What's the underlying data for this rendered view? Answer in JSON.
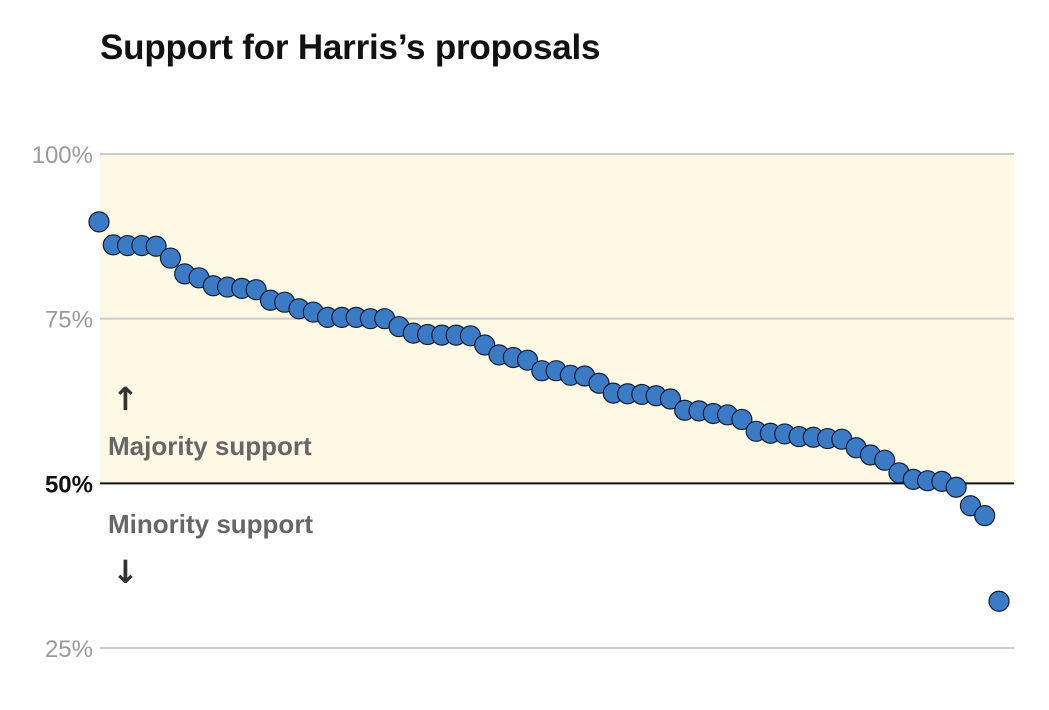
{
  "chart_data": {
    "type": "scatter",
    "title": "Support for Harris’s proposals",
    "xlabel": "",
    "ylabel": "",
    "ylim": [
      25,
      100
    ],
    "y_ticks": [
      {
        "value": 100,
        "label": "100%",
        "bold": false
      },
      {
        "value": 75,
        "label": "75%",
        "bold": false
      },
      {
        "value": 50,
        "label": "50%",
        "bold": true
      },
      {
        "value": 25,
        "label": "25%",
        "bold": false
      }
    ],
    "threshold": 50,
    "shaded_region": [
      50,
      100
    ],
    "annotations": {
      "majority": "Majority support",
      "minority": "Minority support",
      "up_arrow": "↑",
      "down_arrow": "↓"
    },
    "colors": {
      "point_fill": "#3b7bc6",
      "point_stroke": "#0d1d33",
      "shade": "#fef9e5",
      "grid": "#cccccc",
      "threshold_line": "#111111"
    },
    "values": [
      89.7,
      86.2,
      86.1,
      86.1,
      86.0,
      84.2,
      81.8,
      81.2,
      80.0,
      79.8,
      79.6,
      79.4,
      77.8,
      77.5,
      76.5,
      76.0,
      75.2,
      75.2,
      75.2,
      75.0,
      75.0,
      73.8,
      72.8,
      72.6,
      72.5,
      72.5,
      72.4,
      71.0,
      69.5,
      69.1,
      68.7,
      67.1,
      67.1,
      66.4,
      66.3,
      65.2,
      63.7,
      63.6,
      63.5,
      63.3,
      62.8,
      61.1,
      61.0,
      60.6,
      60.4,
      59.7,
      57.9,
      57.6,
      57.5,
      57.1,
      57.0,
      56.8,
      56.7,
      55.4,
      54.3,
      53.5,
      51.6,
      50.6,
      50.4,
      50.3,
      49.4,
      46.6,
      45.1,
      32.1
    ]
  }
}
